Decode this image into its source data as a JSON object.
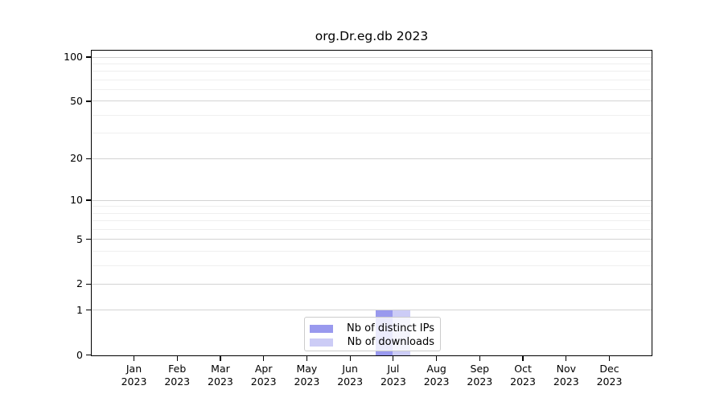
{
  "title": "org.Dr.eg.db 2023",
  "chart_data": {
    "type": "bar",
    "title": "org.Dr.eg.db 2023",
    "categories": [
      "Jan 2023",
      "Feb 2023",
      "Mar 2023",
      "Apr 2023",
      "May 2023",
      "Jun 2023",
      "Jul 2023",
      "Aug 2023",
      "Sep 2023",
      "Oct 2023",
      "Nov 2023",
      "Dec 2023"
    ],
    "series": [
      {
        "name": "Nb of distinct IPs",
        "color": "#9999ee",
        "values": [
          0,
          0,
          0,
          0,
          0,
          0,
          1,
          0,
          0,
          0,
          0,
          0
        ]
      },
      {
        "name": "Nb of downloads",
        "color": "#ccccf6",
        "values": [
          0,
          0,
          0,
          0,
          0,
          0,
          1,
          0,
          0,
          0,
          0,
          0
        ]
      }
    ],
    "xlabel": "",
    "ylabel": "",
    "y_axis": {
      "scale": "log1p",
      "ticks": [
        0,
        1,
        2,
        5,
        10,
        20,
        50,
        100
      ],
      "minor_ticks": [
        3,
        4,
        6,
        7,
        8,
        9,
        30,
        40,
        60,
        70,
        80,
        90
      ],
      "ylim": [
        0,
        110
      ]
    },
    "grid": true,
    "legend": {
      "position": "bottom-center",
      "entries": [
        "Nb of distinct IPs",
        "Nb of downloads"
      ]
    }
  }
}
